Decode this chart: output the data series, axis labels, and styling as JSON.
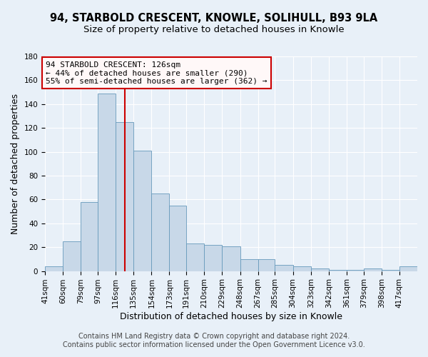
{
  "title": "94, STARBOLD CRESCENT, KNOWLE, SOLIHULL, B93 9LA",
  "subtitle": "Size of property relative to detached houses in Knowle",
  "xlabel": "Distribution of detached houses by size in Knowle",
  "ylabel": "Number of detached properties",
  "bin_labels": [
    "41sqm",
    "60sqm",
    "79sqm",
    "97sqm",
    "116sqm",
    "135sqm",
    "154sqm",
    "173sqm",
    "191sqm",
    "210sqm",
    "229sqm",
    "248sqm",
    "267sqm",
    "285sqm",
    "304sqm",
    "323sqm",
    "342sqm",
    "361sqm",
    "379sqm",
    "398sqm",
    "417sqm"
  ],
  "bin_edges": [
    41,
    60,
    79,
    97,
    116,
    135,
    154,
    173,
    191,
    210,
    229,
    248,
    267,
    285,
    304,
    323,
    342,
    361,
    379,
    398,
    417
  ],
  "bar_heights": [
    4,
    25,
    58,
    149,
    125,
    101,
    65,
    55,
    23,
    22,
    21,
    10,
    10,
    5,
    4,
    2,
    1,
    1,
    2,
    1,
    4
  ],
  "bar_color": "#c8d8e8",
  "bar_edge_color": "#7aа4c4",
  "ylim": [
    0,
    180
  ],
  "yticks": [
    0,
    20,
    40,
    60,
    80,
    100,
    120,
    140,
    160,
    180
  ],
  "vline_x": 126,
  "vline_color": "#cc0000",
  "annotation_line1": "94 STARBOLD CRESCENT: 126sqm",
  "annotation_line2": "← 44% of detached houses are smaller (290)",
  "annotation_line3": "55% of semi-detached houses are larger (362) →",
  "annotation_box_facecolor": "#fff8f8",
  "annotation_border_color": "#cc0000",
  "footer_line1": "Contains HM Land Registry data © Crown copyright and database right 2024.",
  "footer_line2": "Contains public sector information licensed under the Open Government Licence v3.0.",
  "fig_bg_color": "#e8f0f8",
  "plot_bg_color": "#e8f0f8",
  "grid_color": "#ffffff",
  "title_fontsize": 10.5,
  "subtitle_fontsize": 9.5,
  "axis_label_fontsize": 9,
  "tick_fontsize": 7.5,
  "footer_fontsize": 7,
  "annotation_fontsize": 8
}
